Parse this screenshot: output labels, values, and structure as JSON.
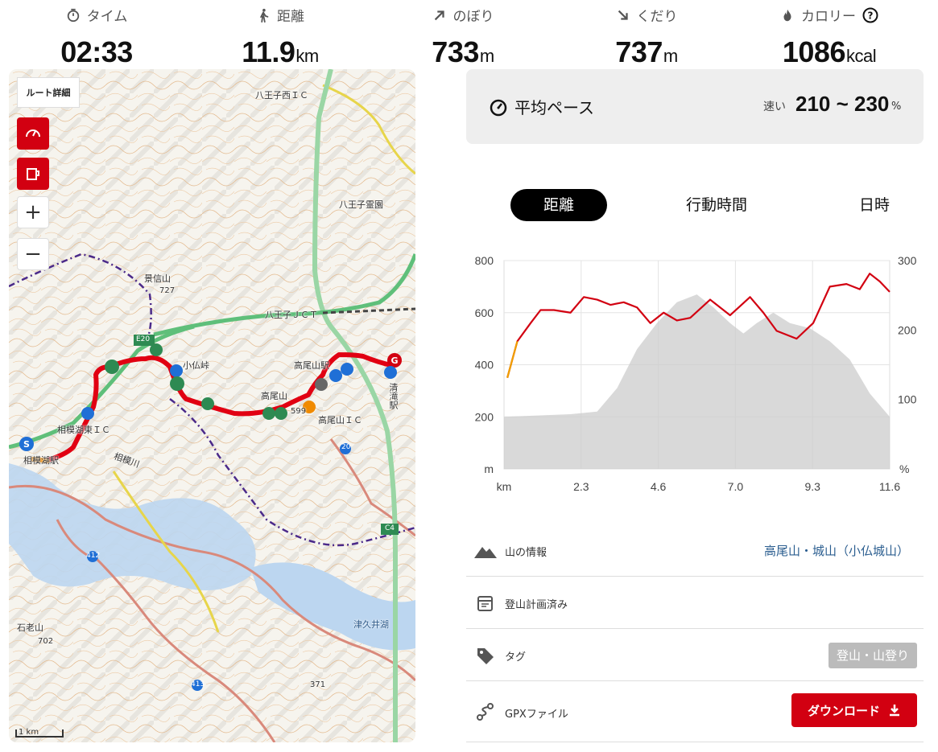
{
  "stats": [
    {
      "label": "タイム",
      "value": "02:33",
      "unit": "",
      "icon": "stopwatch-icon"
    },
    {
      "label": "距離",
      "value": "11.9",
      "unit": "km",
      "icon": "walking-person-icon"
    },
    {
      "label": "のぼり",
      "value": "733",
      "unit": "m",
      "icon": "arrow-up-right-icon"
    },
    {
      "label": "くだり",
      "value": "737",
      "unit": "m",
      "icon": "arrow-down-right-icon"
    },
    {
      "label": "カロリー",
      "value": "1086",
      "unit": "kcal",
      "icon": "flame-icon"
    }
  ],
  "map": {
    "route_detail_label": "ルート詳細",
    "zoom_in": "+",
    "zoom_out": "−",
    "scale": "1 km",
    "labels": {
      "hachioji_west_ic": "八王子西ＩＣ",
      "hachioji_reien": "八王子霊園",
      "kagenobu": "景信山",
      "kagenobu_elev": "727",
      "hachioji_jct": "八王子ＪＣＴ",
      "e20": "E20",
      "kobotoke": "小仏峠",
      "takaosan_eki": "高尾山駅",
      "takaosan": "高尾山",
      "takaosan_elev": "599",
      "takaosan_ic": "高尾山ＩＣ",
      "kiyotaki": "清滝駅",
      "sagamiko_ic": "相模湖東ＩＣ",
      "sagamigawa": "相模川",
      "sagamiko_eki": "相模湖駅",
      "route20": "20",
      "c4": "C4",
      "route412": "412",
      "route413": "413",
      "ishiroyama": "石老山",
      "ishiroyama_elev": "702",
      "tsukui_lake": "津久井湖",
      "p371": "371"
    }
  },
  "pace": {
    "label": "平均ペース",
    "fast": "速い",
    "range": "210 ~ 230",
    "unit": "%"
  },
  "tabs": [
    {
      "label": "距離",
      "active": true
    },
    {
      "label": "行動時間",
      "active": false
    },
    {
      "label": "日時",
      "active": false
    }
  ],
  "chart_data": {
    "type": "line",
    "x_label": "km",
    "y_left_unit": "m",
    "y_right_unit": "%",
    "x_ticks": [
      "km",
      "2.3",
      "4.6",
      "7.0",
      "9.3",
      "11.6"
    ],
    "y_left_ticks": [
      "800",
      "600",
      "400",
      "200"
    ],
    "y_right_ticks": [
      "300",
      "200",
      "100"
    ],
    "ylim_left": [
      0,
      800
    ],
    "ylim_right": [
      0,
      300
    ],
    "xlim": [
      0,
      11.6
    ],
    "series": [
      {
        "type": "area",
        "color": "#cccccc",
        "x": [
          0,
          1,
          2,
          2.8,
          3.4,
          4.0,
          4.6,
          5.2,
          5.8,
          6.3,
          6.8,
          7.2,
          7.6,
          8.1,
          8.6,
          9.2,
          9.8,
          10.4,
          11.0,
          11.6
        ],
        "y": [
          200,
          205,
          210,
          220,
          310,
          460,
          560,
          640,
          670,
          620,
          560,
          520,
          560,
          600,
          560,
          540,
          490,
          420,
          290,
          200
        ]
      },
      {
        "type": "line",
        "color": "#d20011",
        "x": [
          0.1,
          0.4,
          0.8,
          1.1,
          1.5,
          2.0,
          2.4,
          2.8,
          3.2,
          3.6,
          4.0,
          4.4,
          4.8,
          5.2,
          5.6,
          6.2,
          6.8,
          7.4,
          7.8,
          8.2,
          8.8,
          9.3,
          9.8,
          10.3,
          10.7,
          11.0,
          11.3,
          11.6
        ],
        "y": [
          350,
          490,
          560,
          610,
          610,
          600,
          660,
          650,
          630,
          640,
          620,
          560,
          600,
          570,
          580,
          650,
          590,
          660,
          600,
          530,
          500,
          560,
          700,
          710,
          690,
          750,
          720,
          680
        ]
      }
    ]
  },
  "info": {
    "mountain_label": "山の情報",
    "mountain_value": "高尾山・城山（小仏城山）",
    "plan_label": "登山計画済み",
    "tag_label": "タグ",
    "tag_value": "登山・山登り",
    "gpx_label": "GPXファイル",
    "download_label": "ダウンロード"
  }
}
